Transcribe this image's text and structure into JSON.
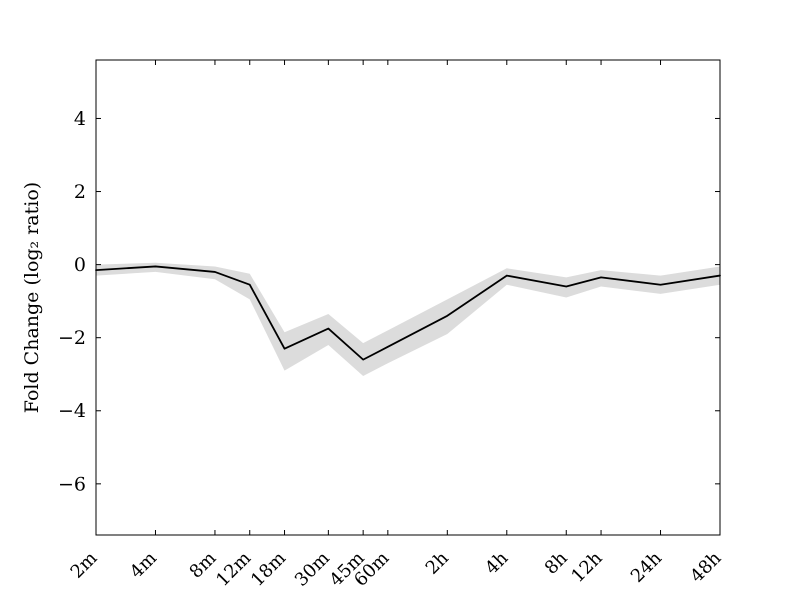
{
  "chart_data": {
    "type": "line",
    "title": "",
    "xlabel": "",
    "ylabel": "Fold Change (log₂ ratio)",
    "x_scale": "log-time",
    "x_labels": [
      "2m",
      "4m",
      "8m",
      "12m",
      "18m",
      "30m",
      "45m",
      "60m",
      "2h",
      "4h",
      "8h",
      "12h",
      "24h",
      "48h"
    ],
    "x_minutes": [
      2,
      4,
      8,
      12,
      18,
      30,
      45,
      60,
      120,
      240,
      480,
      720,
      1440,
      2880
    ],
    "series": [
      {
        "name": "fold-change",
        "values": [
          -0.15,
          -0.05,
          -0.2,
          -0.55,
          -2.3,
          -1.75,
          -2.6,
          -2.25,
          -1.4,
          -0.3,
          -0.6,
          -0.35,
          -0.55,
          -0.3
        ]
      }
    ],
    "band": {
      "name": "confidence-band",
      "upper": [
        0.0,
        0.05,
        -0.05,
        -0.25,
        -1.85,
        -1.35,
        -2.15,
        -1.8,
        -0.95,
        -0.1,
        -0.35,
        -0.15,
        -0.3,
        -0.05
      ],
      "lower": [
        -0.3,
        -0.2,
        -0.4,
        -0.95,
        -2.9,
        -2.2,
        -3.05,
        -2.7,
        -1.9,
        -0.55,
        -0.9,
        -0.6,
        -0.8,
        -0.55
      ]
    },
    "yticks": [
      4,
      2,
      0,
      -2,
      -4,
      -6
    ],
    "ylim": [
      -7.4,
      5.6
    ],
    "grid": false,
    "legend": "none",
    "line_color": "#000000",
    "band_color": "#dcdcdc",
    "axes_color": "#000000",
    "background_color": "#ffffff"
  }
}
